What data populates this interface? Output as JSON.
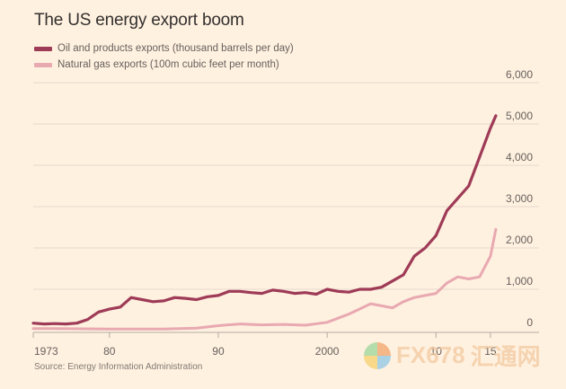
{
  "chart_data": {
    "type": "line",
    "title": "The US energy export boom",
    "xlabel": "",
    "ylabel": "",
    "xlim": [
      1973,
      2016
    ],
    "ylim": [
      0,
      6000
    ],
    "x_ticks": [
      {
        "value": 1973,
        "label": "1973"
      },
      {
        "value": 1980,
        "label": "80"
      },
      {
        "value": 1990,
        "label": "90"
      },
      {
        "value": 2000,
        "label": "2000"
      },
      {
        "value": 2010,
        "label": "10"
      },
      {
        "value": 2015,
        "label": "15"
      }
    ],
    "y_ticks": [
      {
        "value": 0,
        "label": "0"
      },
      {
        "value": 1000,
        "label": "1,000"
      },
      {
        "value": 2000,
        "label": "2,000"
      },
      {
        "value": 3000,
        "label": "3,000"
      },
      {
        "value": 4000,
        "label": "4,000"
      },
      {
        "value": 5000,
        "label": "5,000"
      },
      {
        "value": 6000,
        "label": "6,000"
      }
    ],
    "grid": true,
    "legend_position": "top-left",
    "series": [
      {
        "name": "Oil and products exports (thousand barrels per day)",
        "color": "#9e3b57",
        "x": [
          1973,
          1974,
          1975,
          1976,
          1977,
          1978,
          1979,
          1980,
          1981,
          1982,
          1983,
          1984,
          1985,
          1986,
          1987,
          1988,
          1989,
          1990,
          1991,
          1992,
          1993,
          1994,
          1995,
          1996,
          1997,
          1998,
          1999,
          2000,
          2001,
          2002,
          2003,
          2004,
          2005,
          2006,
          2007,
          2008,
          2009,
          2010,
          2011,
          2012,
          2013,
          2014,
          2015,
          2015.5
        ],
        "values": [
          180,
          160,
          170,
          160,
          180,
          270,
          450,
          520,
          570,
          800,
          750,
          700,
          720,
          800,
          780,
          750,
          820,
          850,
          950,
          950,
          920,
          900,
          980,
          950,
          900,
          920,
          880,
          1000,
          950,
          930,
          1000,
          1000,
          1050,
          1200,
          1350,
          1800,
          2000,
          2300,
          2900,
          3200,
          3500,
          4200,
          4900,
          5200
        ]
      },
      {
        "name": "Natural gas exports (100m cubic feet per month)",
        "color": "#e8a9b1",
        "x": [
          1973,
          1975,
          1980,
          1985,
          1988,
          1990,
          1992,
          1994,
          1996,
          1998,
          2000,
          2002,
          2004,
          2005,
          2006,
          2007,
          2008,
          2009,
          2010,
          2011,
          2012,
          2013,
          2014,
          2015,
          2015.5
        ],
        "values": [
          50,
          50,
          40,
          40,
          60,
          120,
          160,
          140,
          150,
          130,
          200,
          400,
          650,
          600,
          550,
          700,
          800,
          850,
          900,
          1150,
          1300,
          1250,
          1300,
          1800,
          2450
        ]
      }
    ]
  },
  "legend": [
    {
      "label": "Oil and products exports (thousand barrels per day)",
      "color": "#9e3b57"
    },
    {
      "label": "Natural gas exports (100m cubic feet per month)",
      "color": "#e8a9b1"
    }
  ],
  "source": "Source: Energy Information Administration",
  "watermark": {
    "text": "FX678",
    "hanzi": "汇通网"
  }
}
